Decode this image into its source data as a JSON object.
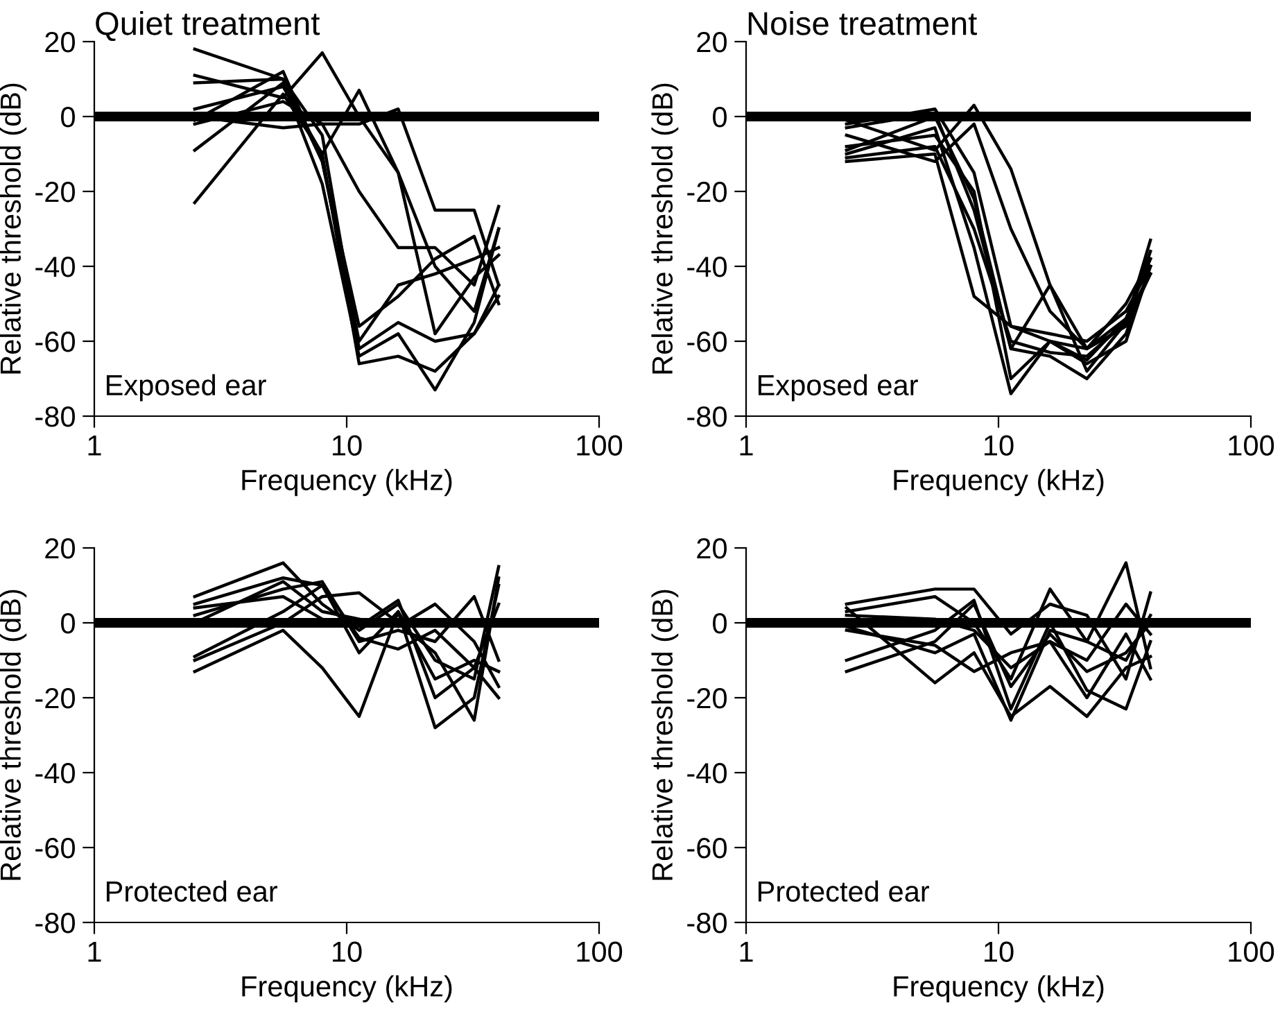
{
  "chart_data": [
    {
      "type": "line",
      "title": "Quiet treatment",
      "xlabel": "Frequency (kHz)",
      "ylabel": "Relative threshold (dB)",
      "annotations": [
        "Exposed ear"
      ],
      "log": "x",
      "xlim": [
        1,
        100
      ],
      "xticks": [
        1,
        10,
        100
      ],
      "ylim": [
        -80,
        20
      ],
      "yticks": [
        -80,
        -60,
        -40,
        -20,
        0,
        20
      ],
      "marker": "none",
      "line_style": "solid",
      "ref_lines": [
        {
          "axis": "y",
          "value": 0,
          "color": "#000000"
        }
      ],
      "x": [
        2.5,
        5.6,
        8,
        11.2,
        16,
        22.4,
        32,
        40
      ],
      "series": [
        {
          "color": "#000000",
          "values": [
            18,
            10,
            -12,
            -60,
            -45,
            -42,
            -38,
            -35
          ]
        },
        {
          "color": "#000000",
          "values": [
            11,
            5,
            17,
            0,
            -15,
            -40,
            -52,
            -30
          ]
        },
        {
          "color": "#000000",
          "values": [
            9,
            10,
            -5,
            -62,
            -55,
            -60,
            -58,
            -48
          ]
        },
        {
          "color": "#000000",
          "values": [
            2,
            8,
            -10,
            -66,
            -64,
            -68,
            -58,
            -45
          ]
        },
        {
          "color": "#000000",
          "values": [
            -2,
            4,
            -2,
            -2,
            2,
            -25,
            -25,
            -45
          ]
        },
        {
          "color": "#000000",
          "values": [
            -9,
            9,
            -18,
            -64,
            -58,
            -73,
            -55,
            -30
          ]
        },
        {
          "color": "#000000",
          "values": [
            -23,
            6,
            -10,
            7,
            -15,
            -58,
            -43,
            -37
          ]
        },
        {
          "color": "#000000",
          "values": [
            0,
            -3,
            -2,
            -20,
            -35,
            -35,
            -45,
            -24
          ]
        },
        {
          "color": "#000000",
          "values": [
            -1,
            12,
            -12,
            -56,
            -48,
            -38,
            -32,
            -50
          ]
        }
      ]
    },
    {
      "type": "line",
      "title": "Noise treatment",
      "xlabel": "Frequency (kHz)",
      "ylabel": "Relative threshold (dB)",
      "annotations": [
        "Exposed ear"
      ],
      "log": "x",
      "xlim": [
        1,
        100
      ],
      "xticks": [
        1,
        10,
        100
      ],
      "ylim": [
        -80,
        20
      ],
      "yticks": [
        -80,
        -60,
        -40,
        -20,
        0,
        20
      ],
      "marker": "none",
      "line_style": "solid",
      "ref_lines": [
        {
          "axis": "y",
          "value": 0,
          "color": "#000000"
        }
      ],
      "x": [
        2.5,
        5.6,
        8,
        11.2,
        16,
        22.4,
        32,
        40
      ],
      "series": [
        {
          "color": "#000000",
          "values": [
            -2,
            2,
            -15,
            -56,
            -58,
            -60,
            -52,
            -40
          ]
        },
        {
          "color": "#000000",
          "values": [
            -3,
            1,
            -25,
            -62,
            -45,
            -68,
            -55,
            -36
          ]
        },
        {
          "color": "#000000",
          "values": [
            -8,
            -5,
            -20,
            -70,
            -60,
            -65,
            -54,
            -42
          ]
        },
        {
          "color": "#000000",
          "values": [
            -10,
            -3,
            -35,
            -74,
            -60,
            -66,
            -60,
            -40
          ]
        },
        {
          "color": "#000000",
          "values": [
            -11,
            -8,
            -30,
            -60,
            -63,
            -64,
            -55,
            -33
          ]
        },
        {
          "color": "#000000",
          "values": [
            -12,
            -10,
            -48,
            -56,
            -60,
            -62,
            -50,
            -38
          ]
        },
        {
          "color": "#000000",
          "values": [
            -5,
            -12,
            -2,
            -30,
            -52,
            -62,
            -56,
            -42
          ]
        },
        {
          "color": "#000000",
          "values": [
            -1,
            -9,
            3,
            -14,
            -45,
            -62,
            -54,
            -38
          ]
        },
        {
          "color": "#000000",
          "values": [
            -9,
            0,
            -22,
            -62,
            -64,
            -70,
            -58,
            -40
          ]
        }
      ]
    },
    {
      "type": "line",
      "xlabel": "Frequency (kHz)",
      "ylabel": "Relative threshold (dB)",
      "annotations": [
        "Protected ear"
      ],
      "log": "x",
      "xlim": [
        1,
        100
      ],
      "xticks": [
        1,
        10,
        100
      ],
      "ylim": [
        -80,
        20
      ],
      "yticks": [
        -80,
        -60,
        -40,
        -20,
        0,
        20
      ],
      "marker": "none",
      "line_style": "solid",
      "ref_lines": [
        {
          "axis": "y",
          "value": 0,
          "color": "#000000"
        }
      ],
      "x": [
        2.5,
        5.6,
        8,
        11.2,
        16,
        22.4,
        32,
        40
      ],
      "series": [
        {
          "color": "#000000",
          "values": [
            7,
            16,
            5,
            -2,
            5,
            -10,
            -15,
            15
          ]
        },
        {
          "color": "#000000",
          "values": [
            5,
            12,
            10,
            -8,
            3,
            -28,
            -20,
            10
          ]
        },
        {
          "color": "#000000",
          "values": [
            2,
            9,
            11,
            -5,
            -2,
            -5,
            7,
            -10
          ]
        },
        {
          "color": "#000000",
          "values": [
            -10,
            0,
            7,
            8,
            0,
            -8,
            -26,
            12
          ]
        },
        {
          "color": "#000000",
          "values": [
            -13,
            -2,
            -12,
            -25,
            3,
            -15,
            -10,
            -13
          ]
        },
        {
          "color": "#000000",
          "values": [
            4,
            7,
            1,
            -1,
            6,
            -20,
            -12,
            -20
          ]
        },
        {
          "color": "#000000",
          "values": [
            -9,
            3,
            10,
            -4,
            -7,
            -2,
            -12,
            5
          ]
        },
        {
          "color": "#000000",
          "values": [
            0,
            11,
            3,
            1,
            -1,
            5,
            -5,
            -17
          ]
        }
      ]
    },
    {
      "type": "line",
      "xlabel": "Frequency (kHz)",
      "ylabel": "Relative threshold (dB)",
      "annotations": [
        "Protected ear"
      ],
      "log": "x",
      "xlim": [
        1,
        100
      ],
      "xticks": [
        1,
        10,
        100
      ],
      "ylim": [
        -80,
        20
      ],
      "yticks": [
        -80,
        -60,
        -40,
        -20,
        0,
        20
      ],
      "marker": "none",
      "line_style": "solid",
      "ref_lines": [
        {
          "axis": "y",
          "value": 0,
          "color": "#000000"
        }
      ],
      "x": [
        2.5,
        5.6,
        8,
        11.2,
        16,
        22.4,
        32,
        40
      ],
      "series": [
        {
          "color": "#000000",
          "values": [
            5,
            9,
            9,
            -3,
            5,
            2,
            -15,
            8
          ]
        },
        {
          "color": "#000000",
          "values": [
            3,
            7,
            0,
            -15,
            9,
            -5,
            16,
            -12
          ]
        },
        {
          "color": "#000000",
          "values": [
            -1,
            -8,
            -3,
            -26,
            -2,
            -5,
            -10,
            2
          ]
        },
        {
          "color": "#000000",
          "values": [
            -10,
            -2,
            6,
            -23,
            0,
            -18,
            -23,
            -5
          ]
        },
        {
          "color": "#000000",
          "values": [
            -13,
            -5,
            5,
            -17,
            -3,
            -13,
            -8,
            0
          ]
        },
        {
          "color": "#000000",
          "values": [
            4,
            -16,
            -8,
            -25,
            -17,
            -25,
            -12,
            -9
          ]
        },
        {
          "color": "#000000",
          "values": [
            2,
            1,
            -2,
            -12,
            -5,
            -10,
            5,
            -3
          ]
        },
        {
          "color": "#000000",
          "values": [
            -2,
            -6,
            -13,
            -8,
            -5,
            -20,
            -3,
            -15
          ]
        }
      ]
    }
  ]
}
